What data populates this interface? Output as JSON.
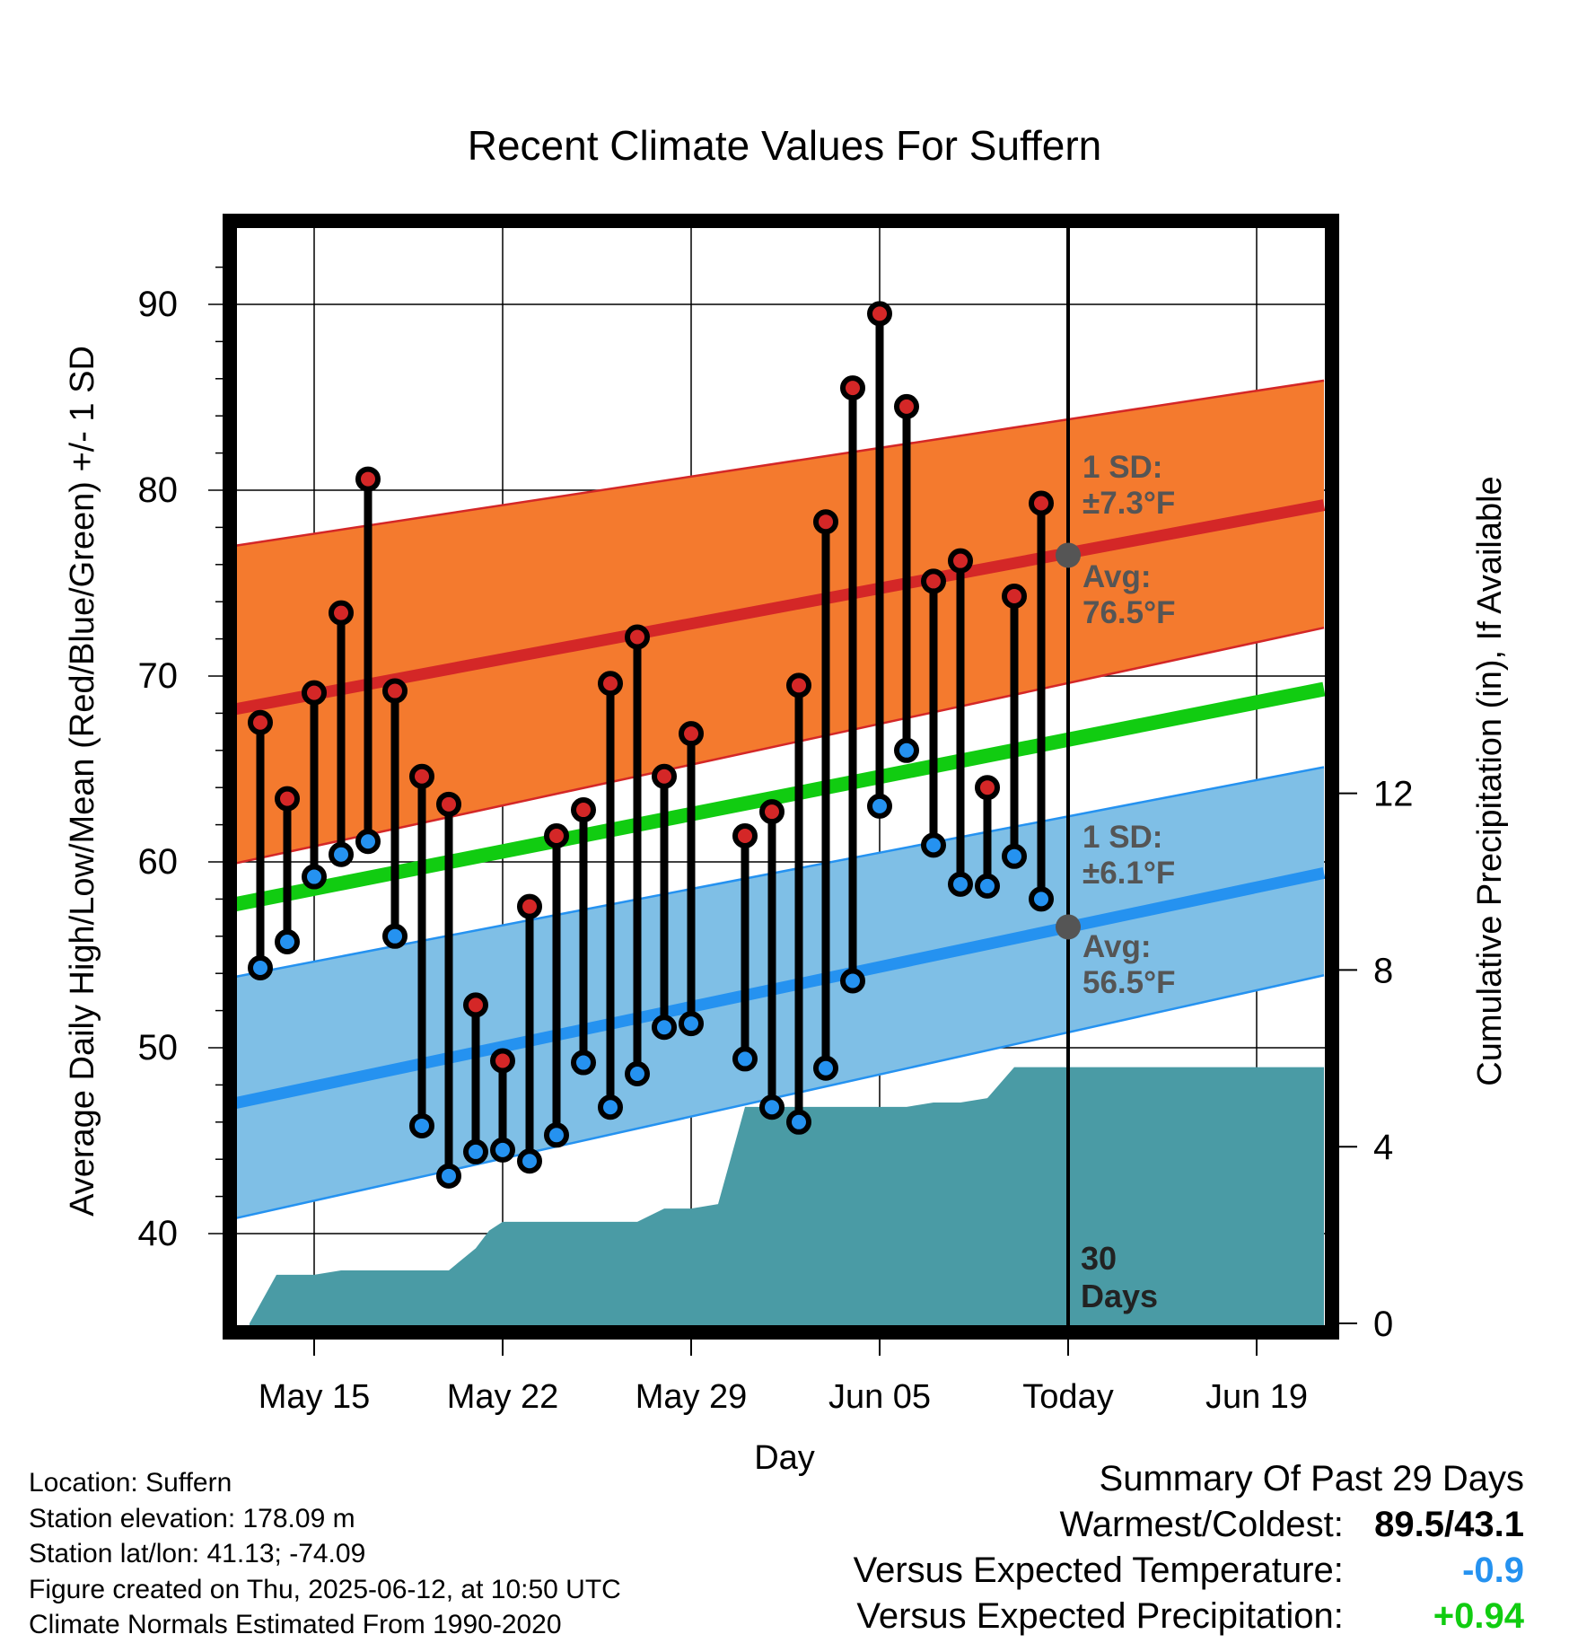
{
  "colors": {
    "high_marker": "#d42727",
    "low_marker": "#2592f0",
    "normal_high_line": "#d42727",
    "normal_low_line": "#2592f0",
    "mean_line": "#11cc11",
    "high_band": "#f47a2e",
    "low_band": "#7fbfe6",
    "precip_area": "#4a9ba5",
    "annotation": "#555555",
    "summary_temp": "#2592f0",
    "summary_precip": "#11cc11"
  },
  "chart_data": {
    "type": "line",
    "title": "Recent Climate Values For Suffern",
    "xlabel": "Day",
    "ylabel": "Average Daily High/Low/Mean (Red/Blue/Green) +/- 1 SD",
    "y2label": "Cumulative Precipitation (in), If Available",
    "ylim": [
      35.5,
      95
    ],
    "y2lim": [
      0,
      22.4
    ],
    "y_ticks": [
      40,
      50,
      60,
      70,
      80,
      90
    ],
    "y2_ticks": [
      0,
      4,
      8,
      12
    ],
    "x_ticks": [
      {
        "day": 15,
        "label": "May 15"
      },
      {
        "day": 22,
        "label": "May 22"
      },
      {
        "day": 29,
        "label": "May 29"
      },
      {
        "day": 36,
        "label": "Jun 05"
      },
      {
        "day": 43,
        "label": "Today"
      },
      {
        "day": 50,
        "label": "Jun 19"
      }
    ],
    "xlim": [
      12,
      52.5
    ],
    "today_day": 43,
    "grid": true,
    "days": [
      13,
      14,
      15,
      16,
      17,
      18,
      19,
      20,
      21,
      22,
      23,
      24,
      25,
      26,
      27,
      28,
      29,
      31,
      32,
      33,
      34,
      35,
      36,
      37,
      38,
      39,
      40,
      41,
      42
    ],
    "highs": [
      67.5,
      63.4,
      69.1,
      73.4,
      80.6,
      69.2,
      64.6,
      63.1,
      52.3,
      49.3,
      57.6,
      61.4,
      62.8,
      69.6,
      72.1,
      64.6,
      66.9,
      61.4,
      62.7,
      69.5,
      78.3,
      85.5,
      89.5,
      84.5,
      75.1,
      76.2,
      64.0,
      74.3,
      79.3
    ],
    "lows": [
      54.3,
      55.7,
      59.2,
      60.4,
      61.1,
      56.0,
      45.8,
      43.1,
      44.4,
      44.5,
      43.9,
      45.3,
      49.2,
      46.8,
      48.6,
      51.1,
      51.3,
      49.4,
      46.8,
      46.0,
      48.9,
      53.6,
      63.0,
      66.0,
      60.9,
      58.8,
      58.7,
      60.3,
      58.0
    ],
    "series": [
      {
        "name": "Normal High",
        "x": [
          12,
          52.5
        ],
        "values": [
          68.2,
          79.2
        ]
      },
      {
        "name": "Normal High +1 SD",
        "x": [
          12,
          52.5
        ],
        "values": [
          77.0,
          85.9
        ]
      },
      {
        "name": "Normal High -1 SD",
        "x": [
          12,
          52.5
        ],
        "values": [
          59.9,
          72.6
        ]
      },
      {
        "name": "Normal Mean",
        "x": [
          12,
          52.5
        ],
        "values": [
          57.7,
          69.3
        ]
      },
      {
        "name": "Normal Low",
        "x": [
          12,
          52.5
        ],
        "values": [
          47.0,
          59.4
        ]
      },
      {
        "name": "Normal Low +1 SD",
        "x": [
          12,
          52.5
        ],
        "values": [
          53.8,
          65.1
        ]
      },
      {
        "name": "Normal Low -1 SD",
        "x": [
          12,
          52.5
        ],
        "values": [
          40.8,
          53.9
        ]
      }
    ],
    "precip": {
      "x": [
        12.6,
        13.6,
        15,
        16,
        17,
        18,
        19,
        20,
        21,
        21.5,
        22,
        23,
        24,
        25,
        26,
        27,
        28,
        29,
        30,
        31,
        32,
        33,
        34,
        35,
        36,
        37,
        38,
        39,
        40,
        41,
        42,
        43,
        52.5
      ],
      "values": [
        0,
        1.1,
        1.1,
        1.2,
        1.2,
        1.2,
        1.2,
        1.2,
        1.7,
        2.1,
        2.3,
        2.3,
        2.3,
        2.3,
        2.3,
        2.3,
        2.6,
        2.6,
        2.7,
        4.9,
        4.9,
        4.9,
        4.9,
        4.9,
        4.9,
        4.9,
        5.0,
        5.0,
        5.1,
        5.8,
        5.8,
        5.8,
        5.8
      ]
    },
    "annotations": {
      "high_sd": "1 SD:",
      "high_sd_value": "±7.3°F",
      "high_avg": "Avg:",
      "high_avg_value": "76.5°F",
      "low_sd": "1 SD:",
      "low_sd_value": "±6.1°F",
      "low_avg": "Avg:",
      "low_avg_value": "56.5°F",
      "window_days": "30",
      "window_label": "Days",
      "today_high_avg": 76.5,
      "today_low_avg": 56.5
    }
  },
  "footer": {
    "location": "Location: Suffern",
    "elevation": "Station elevation: 178.09 m",
    "latlon": "Station lat/lon: 41.13; -74.09",
    "created": "Figure created on Thu, 2025-06-12, at 10:50 UTC",
    "normals": "Climate Normals Estimated From 1990-2020"
  },
  "summary": {
    "heading": "Summary Of Past 29 Days",
    "warmest_label": "Warmest/Coldest:",
    "warmest_value": "89.5/43.1",
    "temp_label": "Versus Expected Temperature:",
    "temp_value": "-0.9",
    "precip_label": "Versus Expected Precipitation:",
    "precip_value": "+0.94"
  }
}
